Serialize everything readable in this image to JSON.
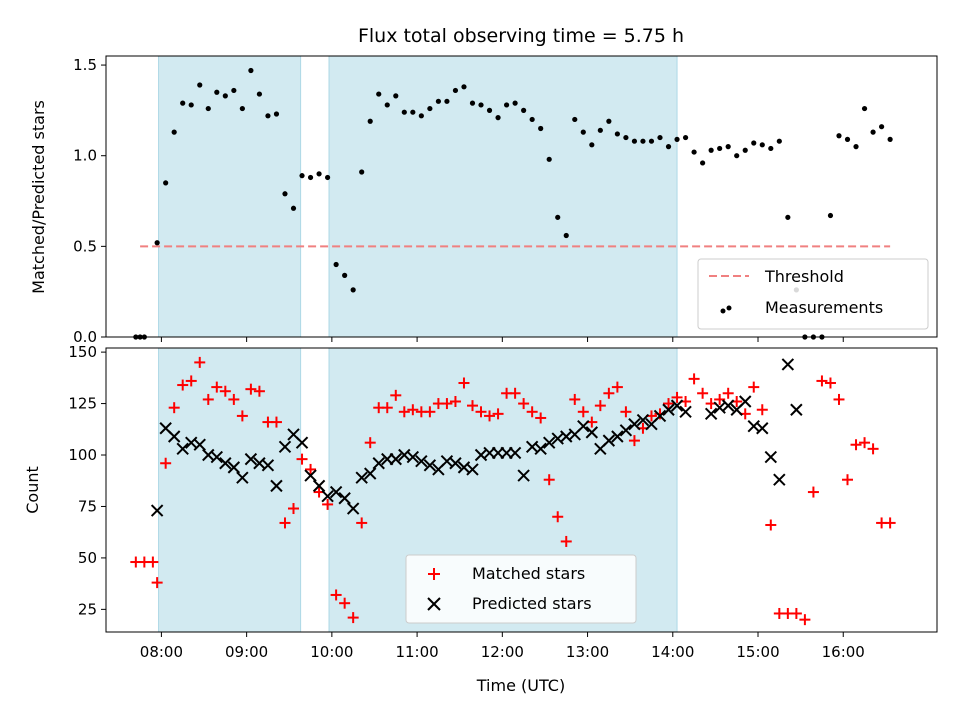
{
  "chart_data": [
    {
      "type": "scatter",
      "title": "Flux total observing time = 5.75 h",
      "xlabel": "",
      "ylabel": "Matched/Predicted stars",
      "xlim": [
        "07:21",
        "17:06"
      ],
      "ylim": [
        0,
        1.55
      ],
      "yticks": [
        0.0,
        0.5,
        1.0,
        1.5
      ],
      "ytick_labels": [
        "0.0",
        "0.5",
        "1.0",
        "1.5"
      ],
      "shaded_intervals": [
        [
          "07:58",
          "09:38"
        ],
        [
          "09:58",
          "14:03"
        ]
      ],
      "shade_color": "#add8e6",
      "threshold": {
        "name": "Threshold",
        "value": 0.5,
        "x_range": [
          "07:45",
          "16:33"
        ],
        "color": "#f08080"
      },
      "legend": {
        "position": "lower right",
        "entries": [
          "Threshold",
          "Measurements"
        ]
      },
      "series": [
        {
          "name": "Measurements",
          "color": "#000000",
          "x": [
            "07:42",
            "07:45",
            "07:48",
            "07:57",
            "08:03",
            "08:09",
            "08:15",
            "08:21",
            "08:27",
            "08:33",
            "08:39",
            "08:45",
            "08:51",
            "08:57",
            "09:03",
            "09:09",
            "09:15",
            "09:21",
            "09:27",
            "09:33",
            "09:39",
            "09:45",
            "09:51",
            "09:57",
            "10:03",
            "10:09",
            "10:15",
            "10:21",
            "10:27",
            "10:33",
            "10:39",
            "10:45",
            "10:51",
            "10:57",
            "11:03",
            "11:09",
            "11:15",
            "11:21",
            "11:27",
            "11:33",
            "11:39",
            "11:45",
            "11:51",
            "11:57",
            "12:03",
            "12:09",
            "12:15",
            "12:21",
            "12:27",
            "12:33",
            "12:39",
            "12:45",
            "12:51",
            "12:57",
            "13:03",
            "13:09",
            "13:15",
            "13:21",
            "13:27",
            "13:33",
            "13:39",
            "13:45",
            "13:51",
            "13:57",
            "14:03",
            "14:09",
            "14:15",
            "14:21",
            "14:27",
            "14:33",
            "14:39",
            "14:45",
            "14:51",
            "14:57",
            "15:03",
            "15:09",
            "15:15",
            "15:21",
            "15:27",
            "15:33",
            "15:39",
            "15:45",
            "15:51",
            "15:57",
            "16:03",
            "16:09",
            "16:15",
            "16:21",
            "16:27",
            "16:33"
          ],
          "y": [
            0.0,
            0.0,
            0.0,
            0.52,
            0.85,
            1.13,
            1.29,
            1.28,
            1.39,
            1.26,
            1.35,
            1.33,
            1.36,
            1.26,
            1.47,
            1.34,
            1.22,
            1.23,
            0.79,
            0.71,
            0.89,
            0.88,
            0.9,
            0.88,
            0.4,
            0.34,
            0.26,
            0.91,
            1.19,
            1.34,
            1.28,
            1.33,
            1.24,
            1.24,
            1.22,
            1.26,
            1.3,
            1.3,
            1.36,
            1.38,
            1.29,
            1.28,
            1.25,
            1.21,
            1.28,
            1.29,
            1.25,
            1.2,
            1.15,
            0.98,
            0.66,
            0.56,
            1.2,
            1.13,
            1.06,
            1.14,
            1.19,
            1.12,
            1.1,
            1.08,
            1.08,
            1.08,
            1.1,
            1.05,
            1.09,
            1.1,
            1.02,
            0.96,
            1.03,
            1.04,
            1.05,
            1.0,
            1.03,
            1.07,
            1.06,
            1.04,
            1.08,
            0.66,
            0.26,
            0.0,
            0.0,
            0.0,
            0.67,
            1.11,
            1.09,
            1.05,
            1.26,
            1.13,
            1.16,
            1.09
          ]
        }
      ]
    },
    {
      "type": "scatter",
      "title": "",
      "xlabel": "Time (UTC)",
      "ylabel": "Count",
      "xlim": [
        "07:21",
        "17:06"
      ],
      "ylim": [
        14,
        152
      ],
      "xticks": [
        "08:00",
        "09:00",
        "10:00",
        "11:00",
        "12:00",
        "13:00",
        "14:00",
        "15:00",
        "16:00"
      ],
      "yticks": [
        25,
        50,
        75,
        100,
        125,
        150
      ],
      "ytick_labels": [
        "25",
        "50",
        "75",
        "100",
        "125",
        "150"
      ],
      "shaded_intervals": [
        [
          "07:58",
          "09:38"
        ],
        [
          "09:58",
          "14:03"
        ]
      ],
      "shade_color": "#add8e6",
      "legend": {
        "position": "lower center",
        "entries": [
          "Matched stars",
          "Predicted stars"
        ]
      },
      "series": [
        {
          "name": "Matched stars",
          "marker": "+",
          "color": "#ff0000",
          "x": [
            "07:42",
            "07:48",
            "07:54",
            "07:57",
            "08:03",
            "08:09",
            "08:15",
            "08:21",
            "08:27",
            "08:33",
            "08:39",
            "08:45",
            "08:51",
            "08:57",
            "09:03",
            "09:09",
            "09:15",
            "09:21",
            "09:27",
            "09:33",
            "09:39",
            "09:45",
            "09:51",
            "09:57",
            "10:03",
            "10:09",
            "10:15",
            "10:21",
            "10:27",
            "10:33",
            "10:39",
            "10:45",
            "10:51",
            "10:57",
            "11:03",
            "11:09",
            "11:15",
            "11:21",
            "11:27",
            "11:33",
            "11:39",
            "11:45",
            "11:51",
            "11:57",
            "12:03",
            "12:09",
            "12:15",
            "12:21",
            "12:27",
            "12:33",
            "12:39",
            "12:45",
            "12:51",
            "12:57",
            "13:03",
            "13:09",
            "13:15",
            "13:21",
            "13:27",
            "13:33",
            "13:39",
            "13:45",
            "13:51",
            "13:57",
            "14:03",
            "14:09",
            "14:15",
            "14:21",
            "14:27",
            "14:33",
            "14:39",
            "14:45",
            "14:51",
            "14:57",
            "15:03",
            "15:09",
            "15:15",
            "15:21",
            "15:27",
            "15:33",
            "15:39",
            "15:45",
            "15:51",
            "15:57",
            "16:03",
            "16:09",
            "16:15",
            "16:21",
            "16:27",
            "16:33"
          ],
          "y": [
            48,
            48,
            48,
            38,
            96,
            123,
            134,
            136,
            145,
            127,
            133,
            131,
            127,
            119,
            132,
            131,
            116,
            116,
            67,
            74,
            98,
            93,
            82,
            76,
            32,
            28,
            21,
            67,
            106,
            123,
            123,
            129,
            121,
            122,
            121,
            121,
            125,
            125,
            126,
            135,
            124,
            121,
            119,
            120,
            130,
            130,
            125,
            121,
            118,
            88,
            70,
            58,
            127,
            121,
            116,
            124,
            130,
            133,
            121,
            107,
            113,
            119,
            120,
            125,
            128,
            126,
            137,
            130,
            125,
            127,
            130,
            126,
            120,
            133,
            122,
            66,
            23,
            23,
            23,
            20,
            82,
            136,
            135,
            127,
            88,
            105,
            106,
            103,
            67,
            67
          ]
        },
        {
          "name": "Predicted stars",
          "marker": "x",
          "color": "#000000",
          "x": [
            "07:57",
            "08:03",
            "08:09",
            "08:15",
            "08:21",
            "08:27",
            "08:33",
            "08:39",
            "08:45",
            "08:51",
            "08:57",
            "09:03",
            "09:09",
            "09:15",
            "09:21",
            "09:27",
            "09:33",
            "09:39",
            "09:45",
            "09:51",
            "09:57",
            "10:03",
            "10:09",
            "10:15",
            "10:21",
            "10:27",
            "10:33",
            "10:39",
            "10:45",
            "10:51",
            "10:57",
            "11:03",
            "11:09",
            "11:15",
            "11:21",
            "11:27",
            "11:33",
            "11:39",
            "11:45",
            "11:51",
            "11:57",
            "12:03",
            "12:09",
            "12:15",
            "12:21",
            "12:27",
            "12:33",
            "12:39",
            "12:45",
            "12:51",
            "12:57",
            "13:03",
            "13:09",
            "13:15",
            "13:21",
            "13:27",
            "13:33",
            "13:39",
            "13:45",
            "13:51",
            "13:57",
            "14:03",
            "14:09",
            "14:27",
            "14:33",
            "14:39",
            "14:45",
            "14:51",
            "14:57",
            "15:03",
            "15:09",
            "15:15",
            "15:21",
            "15:27"
          ],
          "y": [
            73,
            113,
            109,
            103,
            106,
            105,
            100,
            99,
            96,
            94,
            89,
            98,
            96,
            95,
            85,
            104,
            110,
            106,
            90,
            85,
            80,
            82,
            79,
            74,
            89,
            91,
            96,
            98,
            98,
            100,
            99,
            97,
            95,
            93,
            97,
            96,
            94,
            93,
            100,
            101,
            101,
            101,
            101,
            90,
            104,
            103,
            106,
            108,
            109,
            110,
            114,
            111,
            103,
            107,
            109,
            112,
            115,
            117,
            115,
            119,
            122,
            124,
            121,
            120,
            123,
            124,
            122,
            126,
            114,
            113,
            99,
            88,
            144,
            122
          ]
        }
      ]
    }
  ]
}
